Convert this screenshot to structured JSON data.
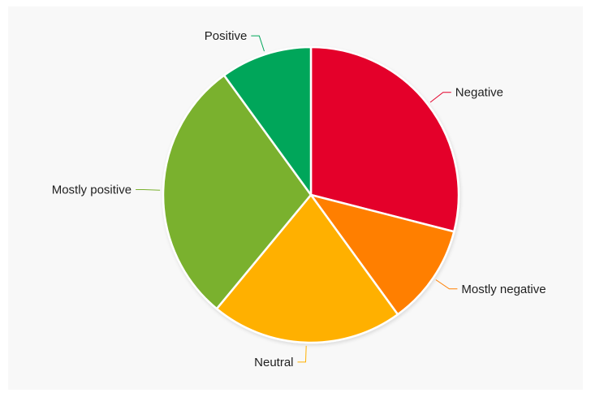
{
  "chart_data": {
    "type": "pie",
    "title": "",
    "start_angle_deg": 0,
    "direction": "clockwise",
    "slices": [
      {
        "label": "Negative",
        "value": 29,
        "color": "#e4002b"
      },
      {
        "label": "Mostly negative",
        "value": 11,
        "color": "#ff7f00"
      },
      {
        "label": "Neutral",
        "value": 21,
        "color": "#ffb000"
      },
      {
        "label": "Mostly positive",
        "value": 29,
        "color": "#7ab12f"
      },
      {
        "label": "Positive",
        "value": 10,
        "color": "#00a65a"
      }
    ],
    "legend": "none",
    "labels": "outside with leader lines"
  }
}
